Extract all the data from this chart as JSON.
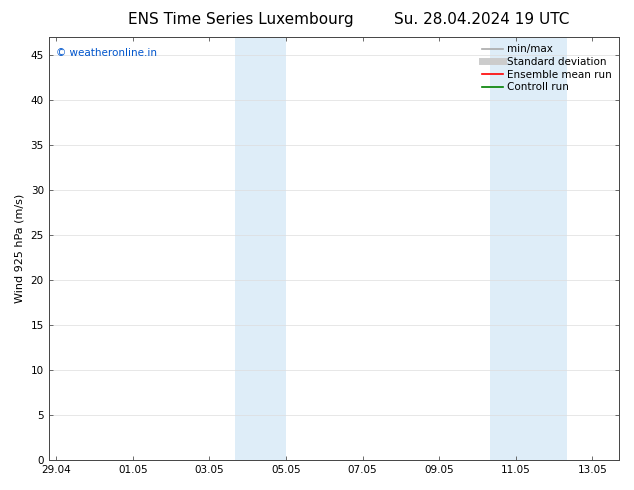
{
  "title_left": "ENS Time Series Luxembourg",
  "title_right": "Su. 28.04.2024 19 UTC",
  "ylabel": "Wind 925 hPa (m/s)",
  "watermark_text": "weatheronline.in",
  "watermark_color": "#0055cc",
  "ylim": [
    0,
    47
  ],
  "yticks": [
    0,
    5,
    10,
    15,
    20,
    25,
    30,
    35,
    40,
    45
  ],
  "xtick_labels": [
    "29.04",
    "01.05",
    "03.05",
    "05.05",
    "07.05",
    "09.05",
    "11.05",
    "13.05"
  ],
  "xtick_positions": [
    0,
    2,
    4,
    6,
    8,
    10,
    12,
    14
  ],
  "xlim": [
    -0.2,
    14.7
  ],
  "shaded_regions": [
    {
      "x_start": 4.67,
      "x_end": 5.33,
      "color": "#deedf8"
    },
    {
      "x_start": 5.33,
      "x_end": 6.0,
      "color": "#deedf8"
    },
    {
      "x_start": 11.33,
      "x_end": 12.0,
      "color": "#deedf8"
    },
    {
      "x_start": 12.0,
      "x_end": 12.67,
      "color": "#deedf8"
    },
    {
      "x_start": 12.67,
      "x_end": 13.33,
      "color": "#deedf8"
    }
  ],
  "bg_color": "#ffffff",
  "plot_bg_color": "#ffffff",
  "legend_entries": [
    {
      "label": "min/max",
      "color": "#aaaaaa",
      "lw": 1.2,
      "style": "solid"
    },
    {
      "label": "Standard deviation",
      "color": "#cccccc",
      "lw": 5,
      "style": "solid"
    },
    {
      "label": "Ensemble mean run",
      "color": "#ff0000",
      "lw": 1.2,
      "style": "solid"
    },
    {
      "label": "Controll run",
      "color": "#008000",
      "lw": 1.2,
      "style": "solid"
    }
  ],
  "title_fontsize": 11,
  "axis_label_fontsize": 8,
  "tick_fontsize": 7.5,
  "legend_fontsize": 7.5
}
